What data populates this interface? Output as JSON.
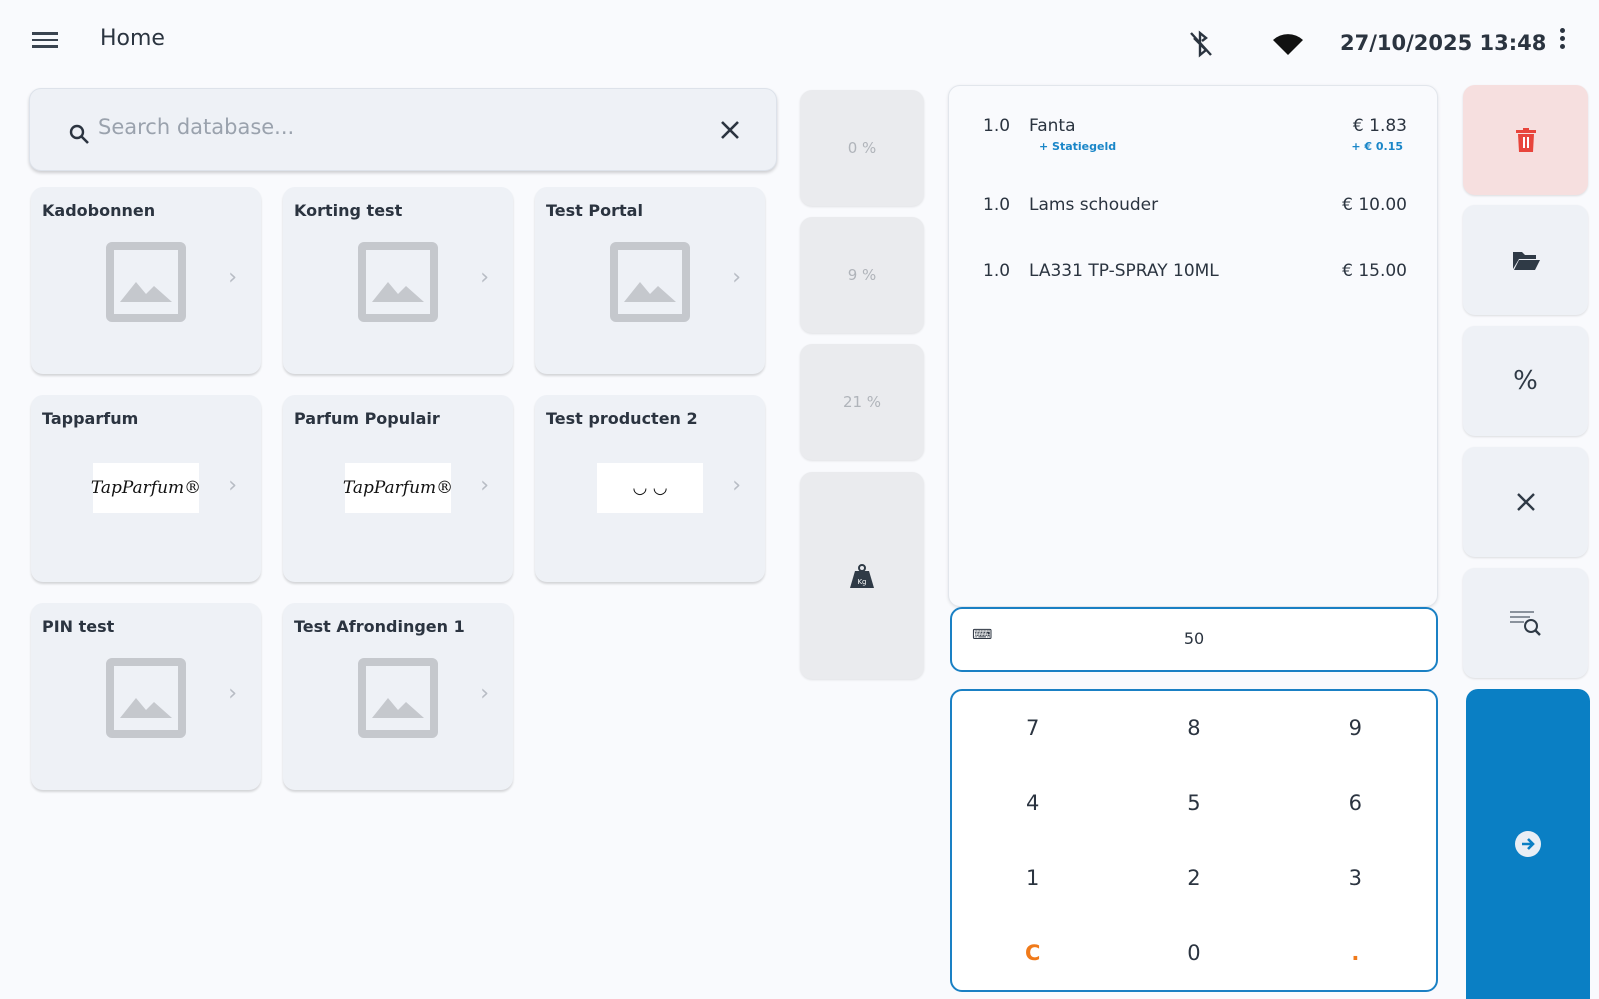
{
  "header": {
    "title": "Home",
    "datetime": "27/10/2025  13:48",
    "icons": [
      "menu-icon",
      "bluetooth-off-icon",
      "wifi-icon",
      "more-vert-icon"
    ]
  },
  "search": {
    "placeholder": "Search database...",
    "value": ""
  },
  "tiles": [
    {
      "label": "Kadobonnen",
      "image": "placeholder"
    },
    {
      "label": "Korting test",
      "image": "placeholder"
    },
    {
      "label": "Test Portal",
      "image": "placeholder"
    },
    {
      "label": "Tapparfum",
      "image": "logo",
      "logo_text": "TapParfum®"
    },
    {
      "label": "Parfum Populair",
      "image": "logo",
      "logo_text": "TapParfum®"
    },
    {
      "label": "Test producten 2",
      "image": "logo",
      "logo_text": "◡      ◡"
    },
    {
      "label": "PIN test",
      "image": "placeholder"
    },
    {
      "label": "Test Afrondingen 1",
      "image": "placeholder"
    }
  ],
  "vat": [
    "0 %",
    "9 %",
    "21 %"
  ],
  "cart": [
    {
      "qty": "1.0",
      "name": "Fanta",
      "price": "€ 1.83",
      "extra": "+ Statiegeld",
      "extra_price": "+ € 0.15"
    },
    {
      "qty": "1.0",
      "name": "Lams schouder",
      "price": "€ 10.00"
    },
    {
      "qty": "1.0",
      "name": "LA331 TP-SPRAY 10ML",
      "price": "€ 15.00"
    }
  ],
  "input_value": "50",
  "keypad": [
    "7",
    "8",
    "9",
    "4",
    "5",
    "6",
    "1",
    "2",
    "3",
    "C",
    "0",
    "."
  ],
  "colors": {
    "accent": "#0a7fc4",
    "danger": "#e8453c",
    "clear": "#f07a1a"
  }
}
